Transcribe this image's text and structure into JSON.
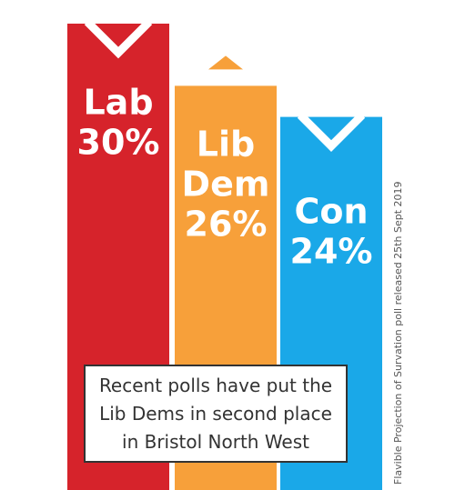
{
  "chart_data": {
    "type": "bar",
    "categories": [
      "Lab",
      "Lib Dem",
      "Con"
    ],
    "values": [
      30,
      26,
      24
    ],
    "unit": "%",
    "series": [
      {
        "label_lines": [
          "Lab",
          "30%"
        ],
        "color": "#d6232b"
      },
      {
        "label_lines": [
          "Lib",
          "Dem",
          "26%"
        ],
        "color": "#f7a03a"
      },
      {
        "label_lines": [
          "Con",
          "24%"
        ],
        "color": "#1aa8e8"
      }
    ],
    "ylim": [
      0,
      30
    ],
    "grid": false,
    "legend": "none"
  },
  "callout_text": "Recent polls have put the Lib Dems in second place in Bristol North West",
  "source_note": "Flavible Projection of Survation poll released 25th Sept 2019"
}
